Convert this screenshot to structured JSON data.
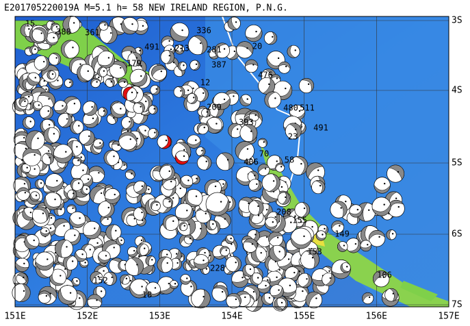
{
  "title": "E201705220019A M=5.1 h= 58 NEW IRELAND REGION, P.N.G.",
  "lon_labels": [
    "151E",
    "152E",
    "153E",
    "154E",
    "155E",
    "156E",
    "157E"
  ],
  "lat_labels": [
    "3S",
    "4S",
    "5S",
    "6S",
    "7S"
  ],
  "depth_labels": [
    "15",
    "388",
    "361",
    "336",
    "491",
    "281",
    "213",
    "20",
    "179",
    "387",
    "476",
    "12",
    "209",
    "393",
    "480",
    "511",
    "491",
    "23",
    "70",
    "58",
    "406",
    "208",
    "155",
    "149",
    "153",
    "106",
    "228",
    "152",
    "18"
  ]
}
